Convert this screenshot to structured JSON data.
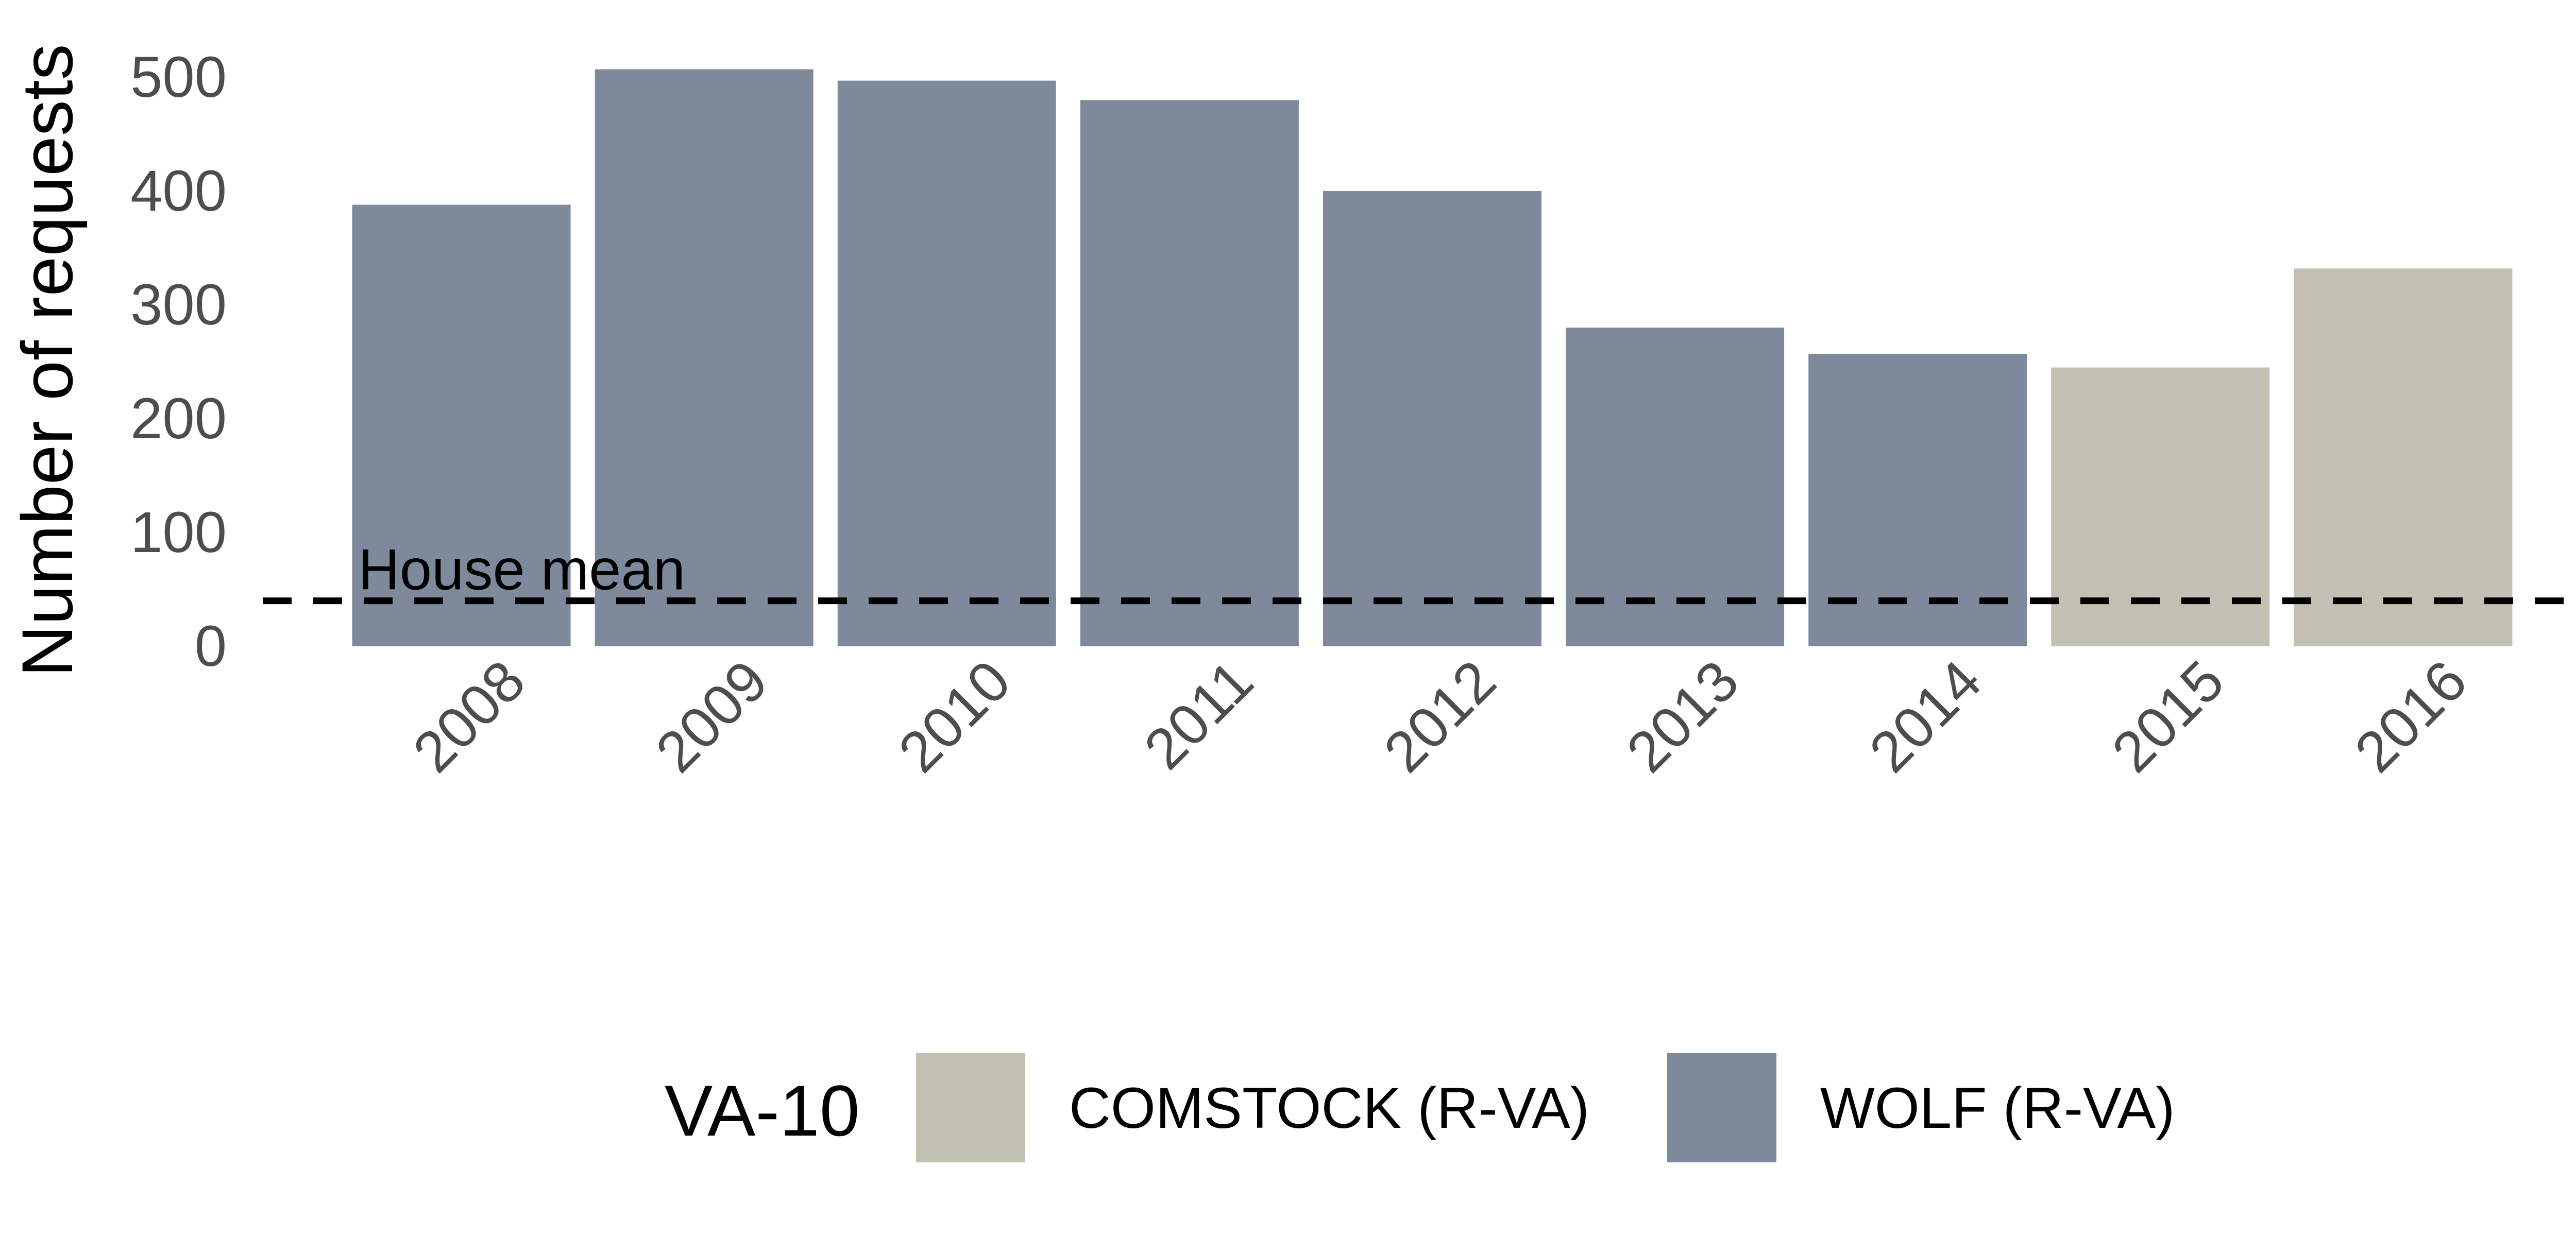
{
  "chart_data": {
    "type": "bar",
    "title": "",
    "xlabel": "",
    "ylabel": "Number of requests",
    "ylim": [
      0,
      500
    ],
    "yticks": [
      0,
      100,
      200,
      300,
      400,
      500
    ],
    "grid": false,
    "categories": [
      "2008",
      "2009",
      "2010",
      "2011",
      "2012",
      "2013",
      "2014",
      "2015",
      "2016"
    ],
    "values": [
      388,
      507,
      497,
      480,
      400,
      280,
      257,
      245,
      332
    ],
    "series_assignment": [
      "WOLF (R-VA)",
      "WOLF (R-VA)",
      "WOLF (R-VA)",
      "WOLF (R-VA)",
      "WOLF (R-VA)",
      "WOLF (R-VA)",
      "WOLF (R-VA)",
      "COMSTOCK (R-VA)",
      "COMSTOCK (R-VA)"
    ],
    "reference_line": {
      "label": "House mean",
      "value": 40,
      "style": "dashed",
      "color": "#000000"
    },
    "legend": {
      "title": "VA-10",
      "placement": "bottom",
      "entries": [
        {
          "name": "COMSTOCK (R-VA)",
          "color": "#c1c0b2"
        },
        {
          "name": "WOLF (R-VA)",
          "color": "#7e8a9c"
        }
      ]
    },
    "x_tick_rotation_deg": 45
  }
}
